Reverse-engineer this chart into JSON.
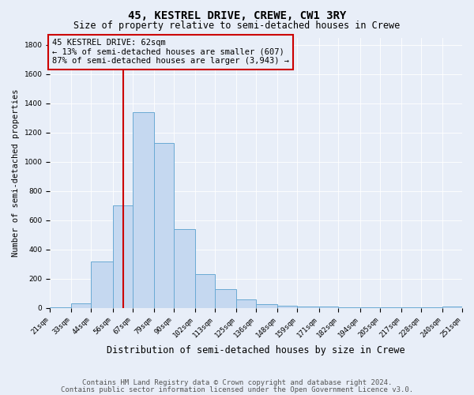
{
  "title": "45, KESTREL DRIVE, CREWE, CW1 3RY",
  "subtitle": "Size of property relative to semi-detached houses in Crewe",
  "xlabel": "Distribution of semi-detached houses by size in Crewe",
  "ylabel": "Number of semi-detached properties",
  "footnote1": "Contains HM Land Registry data © Crown copyright and database right 2024.",
  "footnote2": "Contains public sector information licensed under the Open Government Licence v3.0.",
  "annotation_title": "45 KESTREL DRIVE: 62sqm",
  "annotation_line2": "← 13% of semi-detached houses are smaller (607)",
  "annotation_line3": "87% of semi-detached houses are larger (3,943) →",
  "bin_edges": [
    21,
    33,
    44,
    56,
    67,
    79,
    90,
    102,
    113,
    125,
    136,
    148,
    159,
    171,
    182,
    194,
    205,
    217,
    228,
    240,
    251
  ],
  "bar_heights": [
    5,
    30,
    320,
    700,
    1340,
    1130,
    540,
    230,
    130,
    60,
    25,
    15,
    10,
    8,
    5,
    5,
    5,
    5,
    5,
    8
  ],
  "bar_color": "#c5d8f0",
  "bar_edge_color": "#6aaad4",
  "vline_color": "#cc0000",
  "vline_x": 62,
  "ylim": [
    0,
    1850
  ],
  "annotation_box_color": "#cc0000",
  "background_color": "#e8eef8",
  "grid_color": "#ffffff",
  "title_fontsize": 10,
  "subtitle_fontsize": 8.5,
  "ylabel_fontsize": 7.5,
  "xlabel_fontsize": 8.5,
  "tick_fontsize": 6.5,
  "annotation_fontsize": 7.5,
  "footnote_fontsize": 6.5
}
